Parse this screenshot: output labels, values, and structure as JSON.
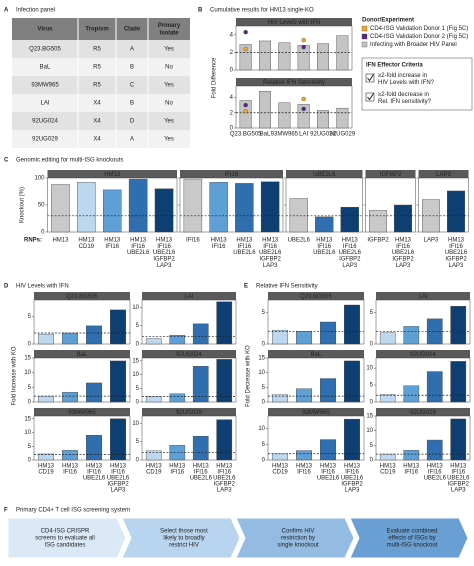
{
  "panel_labels": [
    "A",
    "B",
    "C",
    "D",
    "E",
    "F"
  ],
  "infection_panel": {
    "title": "Infection panel",
    "columns": [
      [
        "Virus"
      ],
      [
        "Tropism"
      ],
      [
        "Clade"
      ],
      [
        "Primary",
        "Isolate"
      ]
    ],
    "rows": [
      [
        "Q23.BG505",
        "R5",
        "A",
        "Yes"
      ],
      [
        "BaL",
        "R5",
        "B",
        "No"
      ],
      [
        "93MW965",
        "R5",
        "C",
        "Yes"
      ],
      [
        "LAI",
        "X4",
        "B",
        "No"
      ],
      [
        "92UG024",
        "X4",
        "D",
        "Yes"
      ],
      [
        "92UG029",
        "X4",
        "A",
        "Yes"
      ]
    ]
  },
  "chart_data": [
    {
      "type": "bar",
      "title": "Cumulative results for HM13 single-KO",
      "ylabel": "Fold Difference",
      "categories": [
        "Q23.BG505",
        "BaL",
        "93MW965",
        "LAI",
        "92UG024",
        "92UG029"
      ],
      "threshold": 2,
      "legend_title": "Donor/Experiment",
      "legend": [
        {
          "name": "CD4-ISG Validation Donor 1 (Fig 5C)",
          "color": "#f0a830"
        },
        {
          "name": "CD4-ISG Validation Donor 2 (Fig 5C)",
          "color": "#5b2a86"
        },
        {
          "name": "Infecting with Broader HIV Panel",
          "color": "#c4c4c4"
        }
      ],
      "subplots": [
        {
          "title": "HIV Levels with IFN",
          "ylim": [
            0,
            5
          ],
          "yticks": [
            0,
            2,
            4
          ],
          "values": [
            2.9,
            3.3,
            3.1,
            2.8,
            3.0,
            3.9
          ],
          "points": [
            {
              "values": [
                2.4,
                null,
                null,
                3.4,
                null,
                null
              ]
            },
            {
              "values": [
                4.3,
                null,
                null,
                2.6,
                null,
                null
              ]
            }
          ]
        },
        {
          "title": "Relative IFN Sensitivity",
          "ylim": [
            0,
            5.5
          ],
          "yticks": [
            0,
            2,
            4
          ],
          "values": [
            3.6,
            4.8,
            3.3,
            3.1,
            2.3,
            2.6
          ],
          "points": [
            {
              "values": [
                2.2,
                null,
                null,
                3.8,
                null,
                null
              ]
            },
            {
              "values": [
                3.0,
                null,
                null,
                2.5,
                null,
                null
              ]
            }
          ]
        }
      ],
      "criteria": {
        "title": "IFN Effector Criteria",
        "items": [
          [
            "≥2-fold increase in",
            "HIV Levels with IFN?"
          ],
          [
            "≥2-fold decrease in",
            "Rel. IFN sensitivity?"
          ]
        ]
      }
    },
    {
      "type": "bar",
      "title": "Genomic editing for multi-ISG knockouts",
      "ylabel": "Knockout (%)",
      "xlabel": "RNPs:",
      "ylim": [
        0,
        100
      ],
      "yticks": [
        0,
        50,
        100
      ],
      "threshold": 30,
      "groups": [
        {
          "title": "HM13",
          "categories": [
            [
              "HM13"
            ],
            [
              "HM13",
              "CD19"
            ],
            [
              "HM13",
              "IFI16"
            ],
            [
              "HM13",
              "IFI16",
              "UBE2L6"
            ],
            [
              "HM13",
              "IFI16",
              "UBE2L6",
              "IGFBP2",
              "LAP3"
            ]
          ],
          "values": [
            88,
            92,
            78,
            98,
            80
          ],
          "colors": [
            "#c9c9c9",
            "#bcd7ee",
            "#5e9fd6",
            "#2f6fb0",
            "#0d3f73"
          ]
        },
        {
          "title": "IFI16",
          "categories": [
            [
              "IFI16"
            ],
            [
              "HM13",
              "IFI16"
            ],
            [
              "HM13",
              "IFI16",
              "UBE2L6"
            ],
            [
              "HM13",
              "IFI16",
              "UBE2L6",
              "IGFBP2",
              "LAP3"
            ]
          ],
          "values": [
            98,
            92,
            90,
            93
          ],
          "colors": [
            "#c9c9c9",
            "#5e9fd6",
            "#2f6fb0",
            "#0d3f73"
          ]
        },
        {
          "title": "UBE2L6",
          "categories": [
            [
              "UBE2L6"
            ],
            [
              "HM13",
              "IFI16",
              "UBE2L6"
            ],
            [
              "HM13",
              "IFI16",
              "UBE2L6",
              "IGFBP2",
              "LAP3"
            ]
          ],
          "values": [
            62,
            28,
            46
          ],
          "colors": [
            "#c9c9c9",
            "#2f6fb0",
            "#0d3f73"
          ]
        },
        {
          "title": "IGFBP2",
          "categories": [
            [
              "IGFBP2"
            ],
            [
              "HM13",
              "IFI16",
              "UBE2L6",
              "IGFBP2",
              "LAP3"
            ]
          ],
          "values": [
            40,
            50
          ],
          "colors": [
            "#c9c9c9",
            "#0d3f73"
          ]
        },
        {
          "title": "LAP3",
          "categories": [
            [
              "LAP3"
            ],
            [
              "HM13",
              "IFI16",
              "UBE2L6",
              "IGFBP2",
              "LAP3"
            ]
          ],
          "values": [
            60,
            76
          ],
          "colors": [
            "#c9c9c9",
            "#0d3f73"
          ]
        }
      ]
    },
    {
      "type": "bar",
      "title": "HIV Levels with IFN",
      "ylabel": "Fold Increase with KO",
      "categories": [
        [
          "HM13",
          "CD19"
        ],
        [
          "HM13",
          "IFI16"
        ],
        [
          "HM13",
          "IFI16",
          "UBE2L6"
        ],
        [
          "HM13",
          "IFI16",
          "UBE2L6",
          "IGFBP2",
          "LAP3"
        ]
      ],
      "colors": [
        "#bcd7ee",
        "#5e9fd6",
        "#2f6fb0",
        "#0d3f73"
      ],
      "threshold": 2,
      "subplots": [
        {
          "title": "Q23.BG505",
          "ylim": [
            0,
            8
          ],
          "yticks": [
            0,
            5
          ],
          "values": [
            1.8,
            2.0,
            3.3,
            6.2
          ]
        },
        {
          "title": "LAI",
          "ylim": [
            0,
            12
          ],
          "yticks": [
            0,
            5,
            10
          ],
          "values": [
            1.5,
            2.4,
            5.5,
            11.5
          ]
        },
        {
          "title": "BaL",
          "ylim": [
            0,
            15
          ],
          "yticks": [
            0,
            5,
            10,
            15
          ],
          "values": [
            2.0,
            3.3,
            6.5,
            14
          ]
        },
        {
          "title": "92UG024",
          "ylim": [
            0,
            16
          ],
          "yticks": [
            0,
            5,
            10,
            15
          ],
          "values": [
            2.0,
            3.0,
            13,
            15.5
          ]
        },
        {
          "title": "93MW965",
          "ylim": [
            0,
            16
          ],
          "yticks": [
            0,
            5,
            10,
            15
          ],
          "values": [
            2.2,
            3.5,
            9,
            15
          ]
        },
        {
          "title": "92UG029",
          "ylim": [
            0,
            12
          ],
          "yticks": [
            0,
            5,
            10
          ],
          "values": [
            2.5,
            4.0,
            6.5,
            11
          ]
        }
      ]
    },
    {
      "type": "bar",
      "title": "Relative IFN Sensitivity",
      "ylabel": "Fold Decrease with KO",
      "categories": [
        [
          "HM13",
          "CD19"
        ],
        [
          "HM13",
          "IFI16"
        ],
        [
          "HM13",
          "IFI16",
          "UBE2L6"
        ],
        [
          "HM13",
          "IFI16",
          "UBE2L6",
          "IGFBP2",
          "LAP3"
        ]
      ],
      "colors": [
        "#bcd7ee",
        "#5e9fd6",
        "#2f6fb0",
        "#0d3f73"
      ],
      "threshold": 2,
      "subplots": [
        {
          "title": "Q23.BG505",
          "ylim": [
            0,
            7
          ],
          "yticks": [
            0,
            5
          ],
          "values": [
            2.2,
            2.0,
            3.5,
            6.2
          ]
        },
        {
          "title": "LAI",
          "ylim": [
            0,
            7
          ],
          "yticks": [
            0,
            5
          ],
          "values": [
            1.8,
            2.8,
            4.0,
            6.0
          ]
        },
        {
          "title": "BaL",
          "ylim": [
            0,
            15
          ],
          "yticks": [
            0,
            5,
            10,
            15
          ],
          "values": [
            2.5,
            4.5,
            8,
            14
          ]
        },
        {
          "title": "92UG024",
          "ylim": [
            0,
            13
          ],
          "yticks": [
            0,
            5,
            10
          ],
          "values": [
            2.2,
            4.8,
            9,
            12
          ]
        },
        {
          "title": "93MW965",
          "ylim": [
            0,
            14
          ],
          "yticks": [
            0,
            5,
            10
          ],
          "values": [
            2.0,
            3.0,
            6.5,
            13
          ]
        },
        {
          "title": "92UG029",
          "ylim": [
            0,
            15
          ],
          "yticks": [
            0,
            5,
            10,
            15
          ],
          "values": [
            2.0,
            3.3,
            6.8,
            14
          ]
        }
      ]
    }
  ],
  "workflow": {
    "title": "Primary CD4+ T cell ISG screening system",
    "steps": [
      [
        "CD4-ISG CRISPR",
        "screens to evaluate all",
        "ISG candidates"
      ],
      [
        "Select those most",
        "likely to broadly",
        "restrict HIV"
      ],
      [
        "Confirm HIV",
        "restriction by",
        "single knockout"
      ],
      [
        "Evaluate combined",
        "effects of ISGs by",
        "multi-ISG knockout"
      ]
    ],
    "colors": [
      "#dbe9f6",
      "#b9d4ee",
      "#94bce3",
      "#6a9fd3"
    ]
  }
}
